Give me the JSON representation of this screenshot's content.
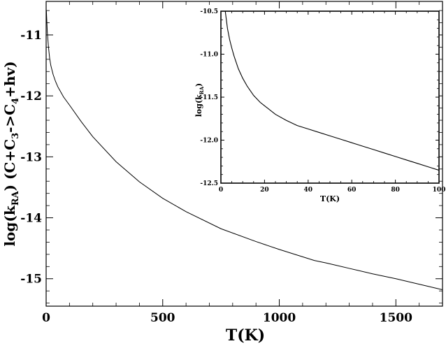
{
  "chart_data": [
    {
      "type": "line",
      "role": "main",
      "xlabel": "T(K)",
      "ylabel_parts": [
        "log(k",
        "RA",
        ") (C+C",
        "3",
        "->C",
        "4",
        "+hv)"
      ],
      "xlim": [
        0,
        1700
      ],
      "ylim": [
        -15.45,
        -10.45
      ],
      "xticks": [
        0,
        500,
        1000,
        1500
      ],
      "xtick_labels": [
        "0",
        "500",
        "1000",
        "1500"
      ],
      "yticks": [
        -15,
        -14,
        -13,
        -12,
        -11
      ],
      "ytick_labels": [
        "-15",
        "-14",
        "-13",
        "-12",
        "-11"
      ],
      "grid": false,
      "series": [
        {
          "x": [
            1,
            5,
            10,
            15,
            20,
            30,
            40,
            50,
            75,
            100,
            150,
            200,
            300,
            400,
            500,
            600,
            750,
            900,
            1000,
            1100,
            1150,
            1200,
            1300,
            1400,
            1500,
            1600,
            1700
          ],
          "y": [
            -10.6,
            -10.95,
            -11.2,
            -11.38,
            -11.5,
            -11.65,
            -11.76,
            -11.85,
            -12.02,
            -12.15,
            -12.42,
            -12.67,
            -13.08,
            -13.41,
            -13.68,
            -13.9,
            -14.18,
            -14.39,
            -14.52,
            -14.64,
            -14.7,
            -14.74,
            -14.83,
            -14.92,
            -15.0,
            -15.09,
            -15.18
          ]
        }
      ]
    },
    {
      "type": "line",
      "role": "inset",
      "xlabel": "T(K)",
      "ylabel_parts": [
        "log(k",
        "RA",
        ")"
      ],
      "xlim": [
        0,
        100
      ],
      "ylim": [
        -12.5,
        -10.5
      ],
      "xticks": [
        0,
        20,
        40,
        60,
        80,
        100
      ],
      "xtick_labels": [
        "0",
        "20",
        "40",
        "60",
        "80",
        "100"
      ],
      "yticks": [
        -10.5,
        -11.0,
        -11.5,
        -12.0,
        -12.5
      ],
      "ytick_labels": [
        "-10.5",
        "-11.0",
        "-11.5",
        "-12.0",
        "-12.5"
      ],
      "grid": false,
      "series": [
        {
          "x": [
            2,
            3,
            4,
            5,
            6,
            8,
            10,
            12,
            15,
            18,
            20,
            25,
            30,
            35,
            40,
            45,
            50,
            55,
            60,
            65,
            70,
            75,
            80,
            85,
            90,
            95,
            100
          ],
          "y": [
            -10.5,
            -10.7,
            -10.83,
            -10.93,
            -11.02,
            -11.17,
            -11.28,
            -11.37,
            -11.48,
            -11.56,
            -11.6,
            -11.7,
            -11.77,
            -11.83,
            -11.87,
            -11.91,
            -11.95,
            -11.99,
            -12.03,
            -12.07,
            -12.11,
            -12.15,
            -12.19,
            -12.23,
            -12.27,
            -12.31,
            -12.35
          ]
        }
      ]
    }
  ]
}
